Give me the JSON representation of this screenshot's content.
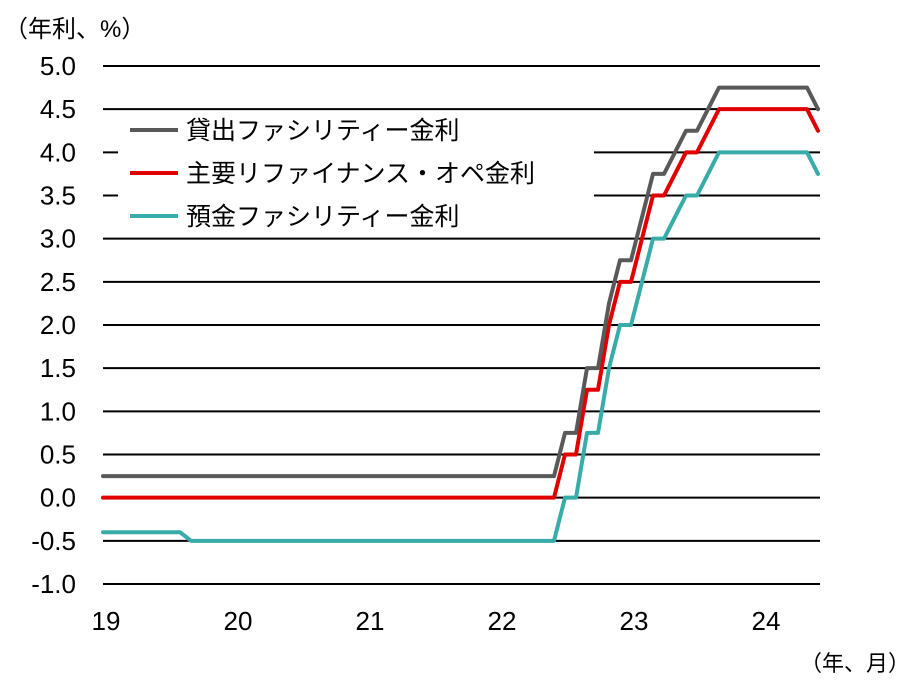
{
  "chart_data": {
    "type": "line",
    "title": "",
    "ylabel": "（年利、%）",
    "xlabel": "（年、月）",
    "ylim": [
      -1.0,
      5.0
    ],
    "yticks": [
      5.0,
      4.5,
      4.0,
      3.5,
      3.0,
      2.5,
      2.0,
      1.5,
      1.0,
      0.5,
      0.0,
      -0.5,
      -1.0
    ],
    "xticks": [
      {
        "label": "19",
        "x": "2019-01"
      },
      {
        "label": "20",
        "x": "2020-01"
      },
      {
        "label": "21",
        "x": "2021-01"
      },
      {
        "label": "22",
        "x": "2022-01"
      },
      {
        "label": "23",
        "x": "2023-01"
      },
      {
        "label": "24",
        "x": "2024-01"
      }
    ],
    "grid": true,
    "legend": "top-left",
    "x": [
      "2019-01",
      "2019-02",
      "2019-03",
      "2019-04",
      "2019-05",
      "2019-06",
      "2019-07",
      "2019-08",
      "2019-09",
      "2019-10",
      "2019-11",
      "2019-12",
      "2020-01",
      "2020-02",
      "2020-03",
      "2020-04",
      "2020-05",
      "2020-06",
      "2020-07",
      "2020-08",
      "2020-09",
      "2020-10",
      "2020-11",
      "2020-12",
      "2021-01",
      "2021-02",
      "2021-03",
      "2021-04",
      "2021-05",
      "2021-06",
      "2021-07",
      "2021-08",
      "2021-09",
      "2021-10",
      "2021-11",
      "2021-12",
      "2022-01",
      "2022-02",
      "2022-03",
      "2022-04",
      "2022-05",
      "2022-06",
      "2022-07",
      "2022-08",
      "2022-09",
      "2022-10",
      "2022-11",
      "2022-12",
      "2023-01",
      "2023-02",
      "2023-03",
      "2023-04",
      "2023-05",
      "2023-06",
      "2023-07",
      "2023-08",
      "2023-09",
      "2023-10",
      "2023-11",
      "2023-12",
      "2024-01",
      "2024-02",
      "2024-03",
      "2024-04",
      "2024-05",
      "2024-06"
    ],
    "series": [
      {
        "name": "貸出ファシリティー金利",
        "color": "#595959",
        "values": [
          0.25,
          0.25,
          0.25,
          0.25,
          0.25,
          0.25,
          0.25,
          0.25,
          0.25,
          0.25,
          0.25,
          0.25,
          0.25,
          0.25,
          0.25,
          0.25,
          0.25,
          0.25,
          0.25,
          0.25,
          0.25,
          0.25,
          0.25,
          0.25,
          0.25,
          0.25,
          0.25,
          0.25,
          0.25,
          0.25,
          0.25,
          0.25,
          0.25,
          0.25,
          0.25,
          0.25,
          0.25,
          0.25,
          0.25,
          0.25,
          0.25,
          0.25,
          0.75,
          0.75,
          1.5,
          1.5,
          2.25,
          2.75,
          2.75,
          3.25,
          3.75,
          3.75,
          4.0,
          4.25,
          4.25,
          4.5,
          4.75,
          4.75,
          4.75,
          4.75,
          4.75,
          4.75,
          4.75,
          4.75,
          4.75,
          4.5
        ]
      },
      {
        "name": "主要リファイナンス・オペ金利",
        "color": "#e00000",
        "values": [
          0.0,
          0.0,
          0.0,
          0.0,
          0.0,
          0.0,
          0.0,
          0.0,
          0.0,
          0.0,
          0.0,
          0.0,
          0.0,
          0.0,
          0.0,
          0.0,
          0.0,
          0.0,
          0.0,
          0.0,
          0.0,
          0.0,
          0.0,
          0.0,
          0.0,
          0.0,
          0.0,
          0.0,
          0.0,
          0.0,
          0.0,
          0.0,
          0.0,
          0.0,
          0.0,
          0.0,
          0.0,
          0.0,
          0.0,
          0.0,
          0.0,
          0.0,
          0.5,
          0.5,
          1.25,
          1.25,
          2.0,
          2.5,
          2.5,
          3.0,
          3.5,
          3.5,
          3.75,
          4.0,
          4.0,
          4.25,
          4.5,
          4.5,
          4.5,
          4.5,
          4.5,
          4.5,
          4.5,
          4.5,
          4.5,
          4.25
        ]
      },
      {
        "name": "預金ファシリティー金利",
        "color": "#38aca9",
        "values": [
          -0.4,
          -0.4,
          -0.4,
          -0.4,
          -0.4,
          -0.4,
          -0.4,
          -0.4,
          -0.5,
          -0.5,
          -0.5,
          -0.5,
          -0.5,
          -0.5,
          -0.5,
          -0.5,
          -0.5,
          -0.5,
          -0.5,
          -0.5,
          -0.5,
          -0.5,
          -0.5,
          -0.5,
          -0.5,
          -0.5,
          -0.5,
          -0.5,
          -0.5,
          -0.5,
          -0.5,
          -0.5,
          -0.5,
          -0.5,
          -0.5,
          -0.5,
          -0.5,
          -0.5,
          -0.5,
          -0.5,
          -0.5,
          -0.5,
          0.0,
          0.0,
          0.75,
          0.75,
          1.5,
          2.0,
          2.0,
          2.5,
          3.0,
          3.0,
          3.25,
          3.5,
          3.5,
          3.75,
          4.0,
          4.0,
          4.0,
          4.0,
          4.0,
          4.0,
          4.0,
          4.0,
          4.0,
          3.75
        ]
      }
    ]
  }
}
